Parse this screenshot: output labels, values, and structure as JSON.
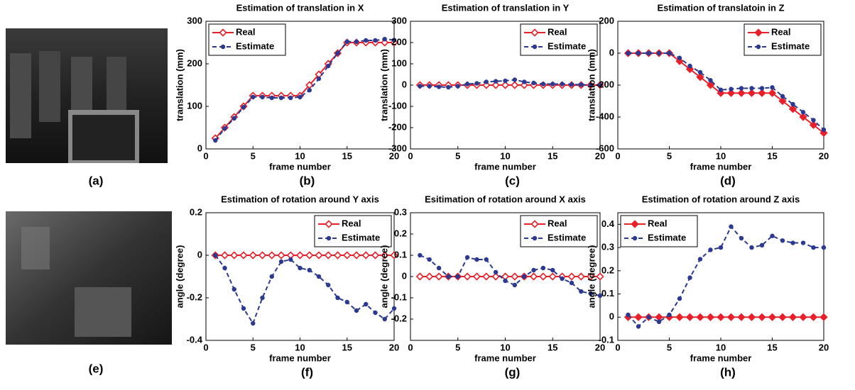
{
  "figure_labels": [
    "(a)",
    "(e)"
  ],
  "chart_data": [
    {
      "type": "line",
      "title": "Estimation of translation in X",
      "xlabel": "frame number",
      "ylabel": "translation (mm)",
      "caption": "(b)",
      "x": [
        1,
        2,
        3,
        4,
        5,
        6,
        7,
        8,
        9,
        10,
        11,
        12,
        13,
        14,
        15,
        16,
        17,
        18,
        19,
        20
      ],
      "xlim": [
        0,
        20
      ],
      "xticks": [
        0,
        5,
        10,
        15,
        20
      ],
      "ylim": [
        0,
        300
      ],
      "yticks": [
        0,
        100,
        200,
        300
      ],
      "legend": "upper left",
      "series": [
        {
          "name": "Real",
          "color": "#e8202a",
          "marker": "diamond-open",
          "values": [
            25,
            50,
            75,
            100,
            125,
            125,
            125,
            125,
            125,
            125,
            150,
            175,
            200,
            225,
            250,
            250,
            250,
            250,
            250,
            250
          ]
        },
        {
          "name": "Estimate",
          "color": "#2b3990",
          "marker": "dot",
          "values": [
            20,
            48,
            72,
            98,
            122,
            122,
            120,
            120,
            120,
            122,
            138,
            165,
            195,
            225,
            252,
            252,
            255,
            255,
            258,
            256
          ]
        }
      ]
    },
    {
      "type": "line",
      "title": "Estimation of translation in Y",
      "xlabel": "frame number",
      "ylabel": "translation (mm)",
      "caption": "(c)",
      "x": [
        1,
        2,
        3,
        4,
        5,
        6,
        7,
        8,
        9,
        10,
        11,
        12,
        13,
        14,
        15,
        16,
        17,
        18,
        19,
        20
      ],
      "xlim": [
        0,
        20
      ],
      "xticks": [
        0,
        5,
        10,
        15,
        20
      ],
      "ylim": [
        -300,
        300
      ],
      "yticks": [
        -300,
        -200,
        -100,
        0,
        100,
        200,
        300
      ],
      "legend": "upper right",
      "series": [
        {
          "name": "Real",
          "color": "#e8202a",
          "marker": "diamond-open",
          "values": [
            0,
            0,
            0,
            0,
            0,
            0,
            0,
            0,
            0,
            0,
            0,
            0,
            0,
            0,
            0,
            0,
            0,
            0,
            0,
            0
          ]
        },
        {
          "name": "Estimate",
          "color": "#2b3990",
          "marker": "dot",
          "values": [
            -5,
            -5,
            -8,
            -10,
            -5,
            5,
            8,
            15,
            18,
            20,
            25,
            15,
            10,
            5,
            5,
            5,
            3,
            2,
            0,
            0
          ]
        }
      ]
    },
    {
      "type": "line",
      "title": "Estimation of translatoin in Z",
      "xlabel": "frame number",
      "ylabel": "translation (mm)",
      "caption": "(d)",
      "x": [
        1,
        2,
        3,
        4,
        5,
        6,
        7,
        8,
        9,
        10,
        11,
        12,
        13,
        14,
        15,
        16,
        17,
        18,
        19,
        20
      ],
      "xlim": [
        0,
        20
      ],
      "xticks": [
        0,
        5,
        10,
        15,
        20
      ],
      "ylim": [
        -600,
        200
      ],
      "yticks": [
        -600,
        -400,
        -200,
        0,
        200
      ],
      "legend": "upper right",
      "series": [
        {
          "name": "Real",
          "color": "#e8202a",
          "marker": "diamond-filled",
          "values": [
            0,
            0,
            0,
            0,
            0,
            -50,
            -100,
            -150,
            -200,
            -250,
            -250,
            -250,
            -250,
            -250,
            -250,
            -300,
            -350,
            -400,
            -450,
            -500
          ]
        },
        {
          "name": "Estimate",
          "color": "#2b3990",
          "marker": "dot",
          "values": [
            0,
            0,
            0,
            0,
            0,
            -30,
            -80,
            -120,
            -170,
            -230,
            -225,
            -220,
            -220,
            -220,
            -215,
            -270,
            -320,
            -370,
            -420,
            -480
          ]
        }
      ]
    },
    {
      "type": "line",
      "title": "Estimation of rotation around Y axis",
      "xlabel": "frame number",
      "ylabel": "angle (degree)",
      "caption": "(f)",
      "x": [
        1,
        2,
        3,
        4,
        5,
        6,
        7,
        8,
        9,
        10,
        11,
        12,
        13,
        14,
        15,
        16,
        17,
        18,
        19,
        20
      ],
      "xlim": [
        0,
        20
      ],
      "xticks": [
        0,
        5,
        10,
        15,
        20
      ],
      "ylim": [
        -0.4,
        0.2
      ],
      "yticks": [
        -0.4,
        -0.2,
        0,
        0.2
      ],
      "legend": "upper right",
      "series": [
        {
          "name": "Real",
          "color": "#e8202a",
          "marker": "diamond-open",
          "values": [
            0,
            0,
            0,
            0,
            0,
            0,
            0,
            0,
            0,
            0,
            0,
            0,
            0,
            0,
            0,
            0,
            0,
            0,
            0,
            0
          ]
        },
        {
          "name": "Estimate",
          "color": "#2b3990",
          "marker": "dot",
          "values": [
            0,
            -0.06,
            -0.16,
            -0.25,
            -0.32,
            -0.2,
            -0.1,
            -0.03,
            -0.02,
            -0.06,
            -0.07,
            -0.1,
            -0.14,
            -0.2,
            -0.22,
            -0.26,
            -0.23,
            -0.27,
            -0.3,
            -0.25
          ]
        }
      ]
    },
    {
      "type": "line",
      "title": "Esitimation of rotation around X axis",
      "xlabel": "frame number",
      "ylabel": "angle (degree)",
      "caption": "(g)",
      "x": [
        1,
        2,
        3,
        4,
        5,
        6,
        7,
        8,
        9,
        10,
        11,
        12,
        13,
        14,
        15,
        16,
        17,
        18,
        19,
        20
      ],
      "xlim": [
        0,
        20
      ],
      "xticks": [
        0,
        5,
        10,
        15,
        20
      ],
      "ylim": [
        -0.3,
        0.3
      ],
      "yticks": [
        -0.2,
        -0.1,
        0,
        0.1,
        0.2,
        0.3
      ],
      "legend": "upper right",
      "series": [
        {
          "name": "Real",
          "color": "#e8202a",
          "marker": "diamond-open",
          "values": [
            0,
            0,
            0,
            0,
            0,
            0,
            0,
            0,
            0,
            0,
            0,
            0,
            0,
            0,
            0,
            0,
            0,
            0,
            0,
            0
          ]
        },
        {
          "name": "Estimate",
          "color": "#2b3990",
          "marker": "dot",
          "values": [
            0.1,
            0.08,
            0.04,
            0,
            0,
            0.09,
            0.08,
            0.08,
            0.02,
            -0.02,
            -0.04,
            0,
            0.03,
            0.04,
            0.03,
            -0.01,
            -0.03,
            -0.07,
            -0.08,
            -0.09
          ]
        }
      ]
    },
    {
      "type": "line",
      "title": "Estimation of rotation around Z axis",
      "xlabel": "frame number",
      "ylabel": "angle (degree)",
      "caption": "(h)",
      "x": [
        1,
        2,
        3,
        4,
        5,
        6,
        7,
        8,
        9,
        10,
        11,
        12,
        13,
        14,
        15,
        16,
        17,
        18,
        19,
        20
      ],
      "xlim": [
        0,
        20
      ],
      "xticks": [
        0,
        5,
        10,
        15,
        20
      ],
      "ylim": [
        -0.1,
        0.45
      ],
      "yticks": [
        -0.1,
        0,
        0.1,
        0.2,
        0.3,
        0.4
      ],
      "legend": "upper left",
      "series": [
        {
          "name": "Real",
          "color": "#e8202a",
          "marker": "diamond-filled",
          "values": [
            0,
            0,
            0,
            0,
            0,
            0,
            0,
            0,
            0,
            0,
            0,
            0,
            0,
            0,
            0,
            0,
            0,
            0,
            0,
            0
          ]
        },
        {
          "name": "Estimate",
          "color": "#2b3990",
          "marker": "dot",
          "values": [
            0.01,
            -0.04,
            0,
            -0.02,
            0.01,
            0.08,
            0.17,
            0.25,
            0.29,
            0.3,
            0.39,
            0.34,
            0.3,
            0.31,
            0.35,
            0.33,
            0.32,
            0.32,
            0.3,
            0.3
          ]
        }
      ]
    }
  ]
}
